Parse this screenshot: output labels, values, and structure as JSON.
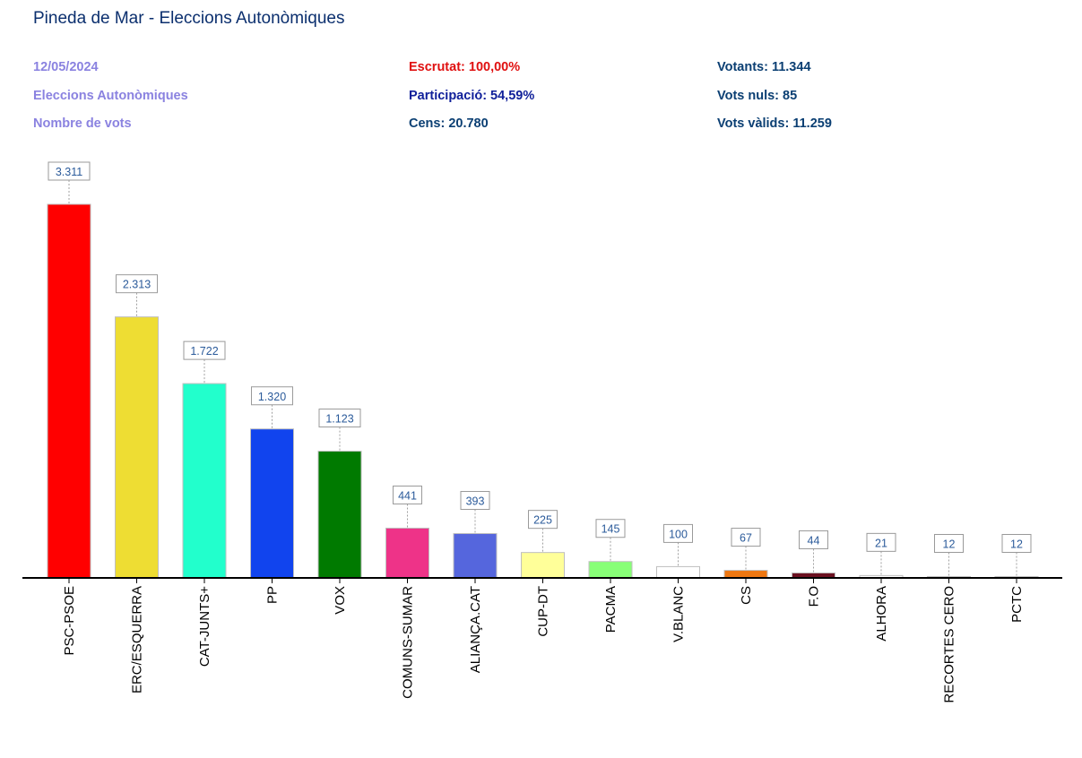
{
  "header": {
    "title": "Pineda de Mar - Eleccions Autonòmiques",
    "date": "12/05/2024",
    "election": "Eleccions Autonòmiques",
    "metric": "Nombre de vots",
    "scrutiny": "Escrutat: 100,00%",
    "participation": "Participació: 54,59%",
    "census": "Cens: 20.780",
    "voters": "Votants: 11.344",
    "null_votes": "Vots nuls: 85",
    "valid_votes": "Vots vàlids: 11.259"
  },
  "colors": {
    "title": "#0b2f6e",
    "scrutiny": "#e01010",
    "participation": "#10209a"
  },
  "chart_data": {
    "type": "bar",
    "categories": [
      "PSC-PSOE",
      "ERC/ESQUERRA",
      "CAT-JUNTS+",
      "PP",
      "VOX",
      "COMUNS-SUMAR",
      "ALIANÇA.CAT",
      "CUP-DT",
      "PACMA",
      "V.BLANC",
      "CS",
      "F.O",
      "ALHORA",
      "RECORTES CERO",
      "PCTC"
    ],
    "values": [
      3311,
      2313,
      1722,
      1320,
      1123,
      441,
      393,
      225,
      145,
      100,
      67,
      44,
      21,
      12,
      12
    ],
    "value_labels": [
      "3.311",
      "2.313",
      "1.722",
      "1.320",
      "1.123",
      "441",
      "393",
      "225",
      "145",
      "100",
      "67",
      "44",
      "21",
      "12",
      "12"
    ],
    "colors": [
      "#ff0000",
      "#eedd33",
      "#22ffcc",
      "#1144ee",
      "#007a00",
      "#ee3388",
      "#5566dd",
      "#ffff99",
      "#88ff77",
      "#ffffff",
      "#ee7711",
      "#6b1020",
      "#ffffff",
      "#ffffff",
      "#ffffff"
    ],
    "ylim": [
      0,
      3400
    ],
    "grid": false
  }
}
